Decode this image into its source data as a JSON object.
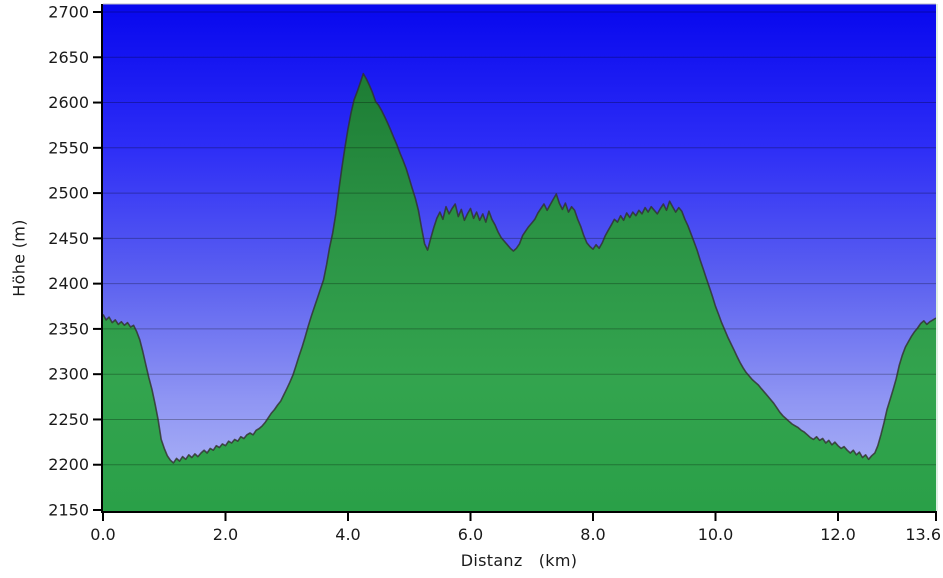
{
  "figure": {
    "background_color": "#ffffff",
    "title": ""
  },
  "axes": {
    "y_label": "Höhe (m)",
    "x_label": "Distanz   (km)"
  },
  "chart_data": {
    "type": "area",
    "title": "",
    "xlabel": "Distanz (km)",
    "ylabel": "Höhe (m)",
    "xlim": [
      0,
      13.6
    ],
    "ylim": [
      2150,
      2700
    ],
    "grid": true,
    "legend_position": "none",
    "x_ticks": [
      {
        "value": 0,
        "label": "0.0"
      },
      {
        "value": 2,
        "label": "2.0"
      },
      {
        "value": 4,
        "label": "4.0"
      },
      {
        "value": 6,
        "label": "6.0"
      },
      {
        "value": 8,
        "label": "8.0"
      },
      {
        "value": 10,
        "label": "10.0"
      },
      {
        "value": 12,
        "label": "12.0"
      },
      {
        "value": 13.6,
        "label": "13.6"
      }
    ],
    "y_ticks": [
      {
        "value": 2150,
        "label": "2150"
      },
      {
        "value": 2200,
        "label": "2200"
      },
      {
        "value": 2250,
        "label": "2250"
      },
      {
        "value": 2300,
        "label": "2300"
      },
      {
        "value": 2350,
        "label": "2350"
      },
      {
        "value": 2400,
        "label": "2400"
      },
      {
        "value": 2450,
        "label": "2450"
      },
      {
        "value": 2500,
        "label": "2500"
      },
      {
        "value": 2550,
        "label": "2550"
      },
      {
        "value": 2600,
        "label": "2600"
      },
      {
        "value": 2650,
        "label": "2650"
      },
      {
        "value": 2700,
        "label": "2700"
      }
    ],
    "style": {
      "sky_gradient_stops": [
        "#0707ee",
        "#2d2df6",
        "#5d62f0",
        "#8f95f3",
        "#b3bbf7"
      ],
      "grass_gradient_stops": [
        "#1d7c34",
        "#2b9345",
        "#33a44e",
        "#2aa048"
      ],
      "profile_line_color": "rgba(50,48,45,0.8)",
      "grid_line_color": "rgba(0,0,0,0.28)",
      "axis_color": "#000000",
      "tick_label_color": "#1a1a1a",
      "plot_top_border_color": "#b9b9c9",
      "plot_right_border_color": "#ddeee2"
    },
    "series": [
      {
        "name": "elevation_profile",
        "points": [
          [
            0.0,
            2366
          ],
          [
            0.05,
            2360
          ],
          [
            0.1,
            2363
          ],
          [
            0.15,
            2357
          ],
          [
            0.2,
            2360
          ],
          [
            0.25,
            2355
          ],
          [
            0.3,
            2358
          ],
          [
            0.35,
            2354
          ],
          [
            0.4,
            2357
          ],
          [
            0.45,
            2352
          ],
          [
            0.5,
            2354
          ],
          [
            0.55,
            2347
          ],
          [
            0.6,
            2338
          ],
          [
            0.65,
            2325
          ],
          [
            0.7,
            2310
          ],
          [
            0.75,
            2296
          ],
          [
            0.8,
            2283
          ],
          [
            0.85,
            2267
          ],
          [
            0.9,
            2250
          ],
          [
            0.95,
            2228
          ],
          [
            1.0,
            2218
          ],
          [
            1.05,
            2210
          ],
          [
            1.1,
            2205
          ],
          [
            1.15,
            2202
          ],
          [
            1.2,
            2207
          ],
          [
            1.25,
            2204
          ],
          [
            1.3,
            2209
          ],
          [
            1.35,
            2206
          ],
          [
            1.4,
            2211
          ],
          [
            1.45,
            2208
          ],
          [
            1.5,
            2212
          ],
          [
            1.55,
            2209
          ],
          [
            1.6,
            2213
          ],
          [
            1.65,
            2216
          ],
          [
            1.7,
            2213
          ],
          [
            1.75,
            2218
          ],
          [
            1.8,
            2216
          ],
          [
            1.85,
            2221
          ],
          [
            1.9,
            2219
          ],
          [
            1.95,
            2223
          ],
          [
            2.0,
            2221
          ],
          [
            2.05,
            2226
          ],
          [
            2.1,
            2224
          ],
          [
            2.15,
            2228
          ],
          [
            2.2,
            2226
          ],
          [
            2.25,
            2231
          ],
          [
            2.3,
            2229
          ],
          [
            2.35,
            2233
          ],
          [
            2.4,
            2235
          ],
          [
            2.45,
            2233
          ],
          [
            2.5,
            2238
          ],
          [
            2.55,
            2240
          ],
          [
            2.6,
            2243
          ],
          [
            2.65,
            2247
          ],
          [
            2.7,
            2252
          ],
          [
            2.75,
            2257
          ],
          [
            2.8,
            2261
          ],
          [
            2.85,
            2266
          ],
          [
            2.9,
            2270
          ],
          [
            2.95,
            2277
          ],
          [
            3.0,
            2284
          ],
          [
            3.05,
            2291
          ],
          [
            3.1,
            2299
          ],
          [
            3.15,
            2309
          ],
          [
            3.2,
            2320
          ],
          [
            3.25,
            2330
          ],
          [
            3.3,
            2341
          ],
          [
            3.35,
            2353
          ],
          [
            3.4,
            2364
          ],
          [
            3.45,
            2374
          ],
          [
            3.5,
            2384
          ],
          [
            3.55,
            2394
          ],
          [
            3.6,
            2404
          ],
          [
            3.65,
            2421
          ],
          [
            3.7,
            2440
          ],
          [
            3.75,
            2456
          ],
          [
            3.8,
            2477
          ],
          [
            3.85,
            2503
          ],
          [
            3.9,
            2528
          ],
          [
            3.95,
            2550
          ],
          [
            4.0,
            2571
          ],
          [
            4.05,
            2589
          ],
          [
            4.1,
            2603
          ],
          [
            4.15,
            2612
          ],
          [
            4.2,
            2622
          ],
          [
            4.25,
            2632
          ],
          [
            4.3,
            2626
          ],
          [
            4.35,
            2619
          ],
          [
            4.4,
            2611
          ],
          [
            4.45,
            2601
          ],
          [
            4.5,
            2597
          ],
          [
            4.55,
            2591
          ],
          [
            4.6,
            2584
          ],
          [
            4.65,
            2577
          ],
          [
            4.7,
            2569
          ],
          [
            4.75,
            2561
          ],
          [
            4.8,
            2553
          ],
          [
            4.85,
            2544
          ],
          [
            4.9,
            2536
          ],
          [
            4.95,
            2527
          ],
          [
            5.0,
            2516
          ],
          [
            5.05,
            2505
          ],
          [
            5.1,
            2494
          ],
          [
            5.15,
            2481
          ],
          [
            5.2,
            2462
          ],
          [
            5.25,
            2444
          ],
          [
            5.3,
            2437
          ],
          [
            5.35,
            2450
          ],
          [
            5.4,
            2462
          ],
          [
            5.45,
            2472
          ],
          [
            5.5,
            2479
          ],
          [
            5.55,
            2471
          ],
          [
            5.6,
            2485
          ],
          [
            5.65,
            2477
          ],
          [
            5.7,
            2483
          ],
          [
            5.75,
            2488
          ],
          [
            5.8,
            2474
          ],
          [
            5.85,
            2482
          ],
          [
            5.9,
            2470
          ],
          [
            5.95,
            2477
          ],
          [
            6.0,
            2483
          ],
          [
            6.05,
            2472
          ],
          [
            6.1,
            2479
          ],
          [
            6.15,
            2470
          ],
          [
            6.2,
            2477
          ],
          [
            6.25,
            2468
          ],
          [
            6.3,
            2480
          ],
          [
            6.35,
            2471
          ],
          [
            6.4,
            2465
          ],
          [
            6.45,
            2457
          ],
          [
            6.5,
            2451
          ],
          [
            6.55,
            2447
          ],
          [
            6.6,
            2443
          ],
          [
            6.65,
            2439
          ],
          [
            6.7,
            2436
          ],
          [
            6.75,
            2439
          ],
          [
            6.8,
            2444
          ],
          [
            6.85,
            2453
          ],
          [
            6.9,
            2458
          ],
          [
            6.95,
            2463
          ],
          [
            7.0,
            2467
          ],
          [
            7.05,
            2471
          ],
          [
            7.1,
            2478
          ],
          [
            7.15,
            2483
          ],
          [
            7.2,
            2488
          ],
          [
            7.25,
            2481
          ],
          [
            7.3,
            2487
          ],
          [
            7.35,
            2493
          ],
          [
            7.4,
            2499
          ],
          [
            7.45,
            2489
          ],
          [
            7.5,
            2482
          ],
          [
            7.55,
            2489
          ],
          [
            7.6,
            2479
          ],
          [
            7.65,
            2485
          ],
          [
            7.7,
            2481
          ],
          [
            7.75,
            2471
          ],
          [
            7.8,
            2463
          ],
          [
            7.85,
            2453
          ],
          [
            7.9,
            2445
          ],
          [
            7.95,
            2441
          ],
          [
            8.0,
            2438
          ],
          [
            8.05,
            2443
          ],
          [
            8.1,
            2439
          ],
          [
            8.15,
            2445
          ],
          [
            8.2,
            2453
          ],
          [
            8.25,
            2459
          ],
          [
            8.3,
            2465
          ],
          [
            8.35,
            2471
          ],
          [
            8.4,
            2468
          ],
          [
            8.45,
            2475
          ],
          [
            8.5,
            2470
          ],
          [
            8.55,
            2478
          ],
          [
            8.6,
            2473
          ],
          [
            8.65,
            2479
          ],
          [
            8.7,
            2475
          ],
          [
            8.75,
            2481
          ],
          [
            8.8,
            2477
          ],
          [
            8.85,
            2484
          ],
          [
            8.9,
            2479
          ],
          [
            8.95,
            2485
          ],
          [
            9.0,
            2481
          ],
          [
            9.05,
            2477
          ],
          [
            9.1,
            2483
          ],
          [
            9.15,
            2488
          ],
          [
            9.2,
            2481
          ],
          [
            9.25,
            2491
          ],
          [
            9.3,
            2485
          ],
          [
            9.35,
            2479
          ],
          [
            9.4,
            2484
          ],
          [
            9.45,
            2480
          ],
          [
            9.5,
            2471
          ],
          [
            9.55,
            2464
          ],
          [
            9.6,
            2455
          ],
          [
            9.65,
            2446
          ],
          [
            9.7,
            2437
          ],
          [
            9.75,
            2426
          ],
          [
            9.8,
            2416
          ],
          [
            9.85,
            2406
          ],
          [
            9.9,
            2396
          ],
          [
            9.95,
            2386
          ],
          [
            10.0,
            2375
          ],
          [
            10.05,
            2366
          ],
          [
            10.1,
            2357
          ],
          [
            10.15,
            2349
          ],
          [
            10.2,
            2341
          ],
          [
            10.25,
            2334
          ],
          [
            10.3,
            2327
          ],
          [
            10.35,
            2320
          ],
          [
            10.4,
            2313
          ],
          [
            10.45,
            2307
          ],
          [
            10.5,
            2302
          ],
          [
            10.55,
            2298
          ],
          [
            10.6,
            2294
          ],
          [
            10.65,
            2291
          ],
          [
            10.7,
            2288
          ],
          [
            10.75,
            2284
          ],
          [
            10.8,
            2280
          ],
          [
            10.85,
            2276
          ],
          [
            10.9,
            2272
          ],
          [
            10.95,
            2268
          ],
          [
            11.0,
            2263
          ],
          [
            11.05,
            2258
          ],
          [
            11.1,
            2254
          ],
          [
            11.15,
            2251
          ],
          [
            11.2,
            2248
          ],
          [
            11.25,
            2245
          ],
          [
            11.3,
            2243
          ],
          [
            11.35,
            2241
          ],
          [
            11.4,
            2238
          ],
          [
            11.45,
            2236
          ],
          [
            11.5,
            2233
          ],
          [
            11.55,
            2230
          ],
          [
            11.6,
            2228
          ],
          [
            11.65,
            2231
          ],
          [
            11.7,
            2227
          ],
          [
            11.75,
            2229
          ],
          [
            11.8,
            2224
          ],
          [
            11.85,
            2227
          ],
          [
            11.9,
            2222
          ],
          [
            11.95,
            2225
          ],
          [
            12.0,
            2221
          ],
          [
            12.05,
            2218
          ],
          [
            12.1,
            2220
          ],
          [
            12.15,
            2216
          ],
          [
            12.2,
            2213
          ],
          [
            12.25,
            2216
          ],
          [
            12.3,
            2211
          ],
          [
            12.35,
            2214
          ],
          [
            12.4,
            2208
          ],
          [
            12.45,
            2211
          ],
          [
            12.5,
            2206
          ],
          [
            12.55,
            2210
          ],
          [
            12.6,
            2213
          ],
          [
            12.65,
            2221
          ],
          [
            12.7,
            2233
          ],
          [
            12.75,
            2246
          ],
          [
            12.8,
            2261
          ],
          [
            12.85,
            2272
          ],
          [
            12.9,
            2283
          ],
          [
            12.95,
            2295
          ],
          [
            13.0,
            2310
          ],
          [
            13.05,
            2321
          ],
          [
            13.1,
            2330
          ],
          [
            13.15,
            2336
          ],
          [
            13.2,
            2342
          ],
          [
            13.25,
            2347
          ],
          [
            13.3,
            2351
          ],
          [
            13.35,
            2356
          ],
          [
            13.4,
            2359
          ],
          [
            13.45,
            2355
          ],
          [
            13.5,
            2358
          ],
          [
            13.55,
            2360
          ],
          [
            13.6,
            2362
          ]
        ]
      }
    ]
  }
}
